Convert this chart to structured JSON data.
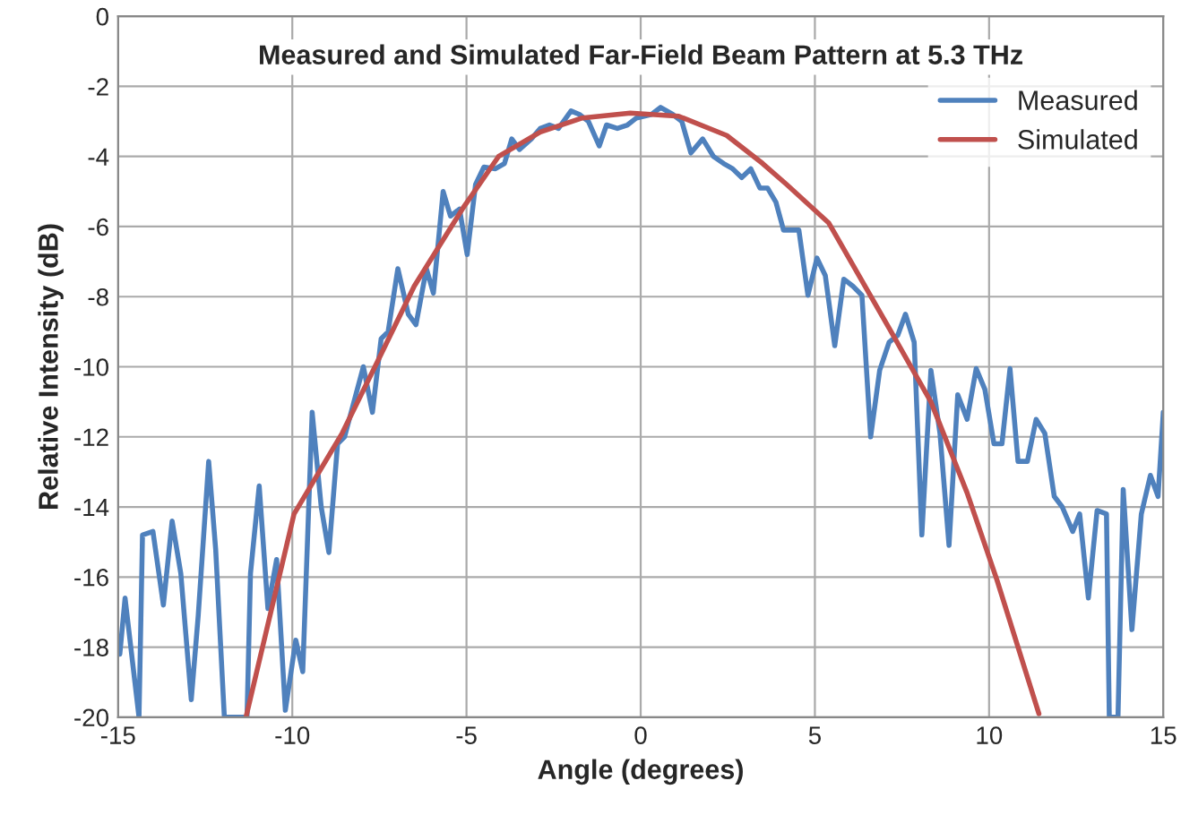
{
  "chart_data": {
    "type": "line",
    "title": "Measured and Simulated Far-Field Beam Pattern at 5.3 THz",
    "xlabel": "Angle (degrees)",
    "ylabel": "Relative Intensity (dB)",
    "xlim": [
      -15,
      15
    ],
    "xticks": [
      -15,
      -10,
      -5,
      0,
      5,
      10,
      15
    ],
    "ylim": [
      -20,
      0
    ],
    "yticks": [
      -20,
      -18,
      -16,
      -14,
      -12,
      -10,
      -8,
      -6,
      -4,
      -2,
      0
    ],
    "grid": true,
    "legend": "top right",
    "line_style": "solid",
    "series": [
      {
        "name": "Measured",
        "color": "#4f81bd",
        "x": [
          -14.95,
          -14.8,
          -14.4,
          -14.3,
          -14.0,
          -13.7,
          -13.45,
          -13.2,
          -12.9,
          -12.7,
          -12.4,
          -12.2,
          -11.95,
          -11.3,
          -11.2,
          -10.95,
          -10.7,
          -10.45,
          -10.2,
          -9.9,
          -9.7,
          -9.43,
          -9.17,
          -8.95,
          -8.7,
          -8.5,
          -7.96,
          -7.7,
          -7.45,
          -7.25,
          -6.97,
          -6.67,
          -6.45,
          -6.15,
          -5.95,
          -5.67,
          -5.46,
          -5.2,
          -4.98,
          -4.74,
          -4.5,
          -4.17,
          -3.91,
          -3.7,
          -3.48,
          -3.14,
          -2.88,
          -2.62,
          -2.36,
          -2.0,
          -1.76,
          -1.5,
          -1.19,
          -0.98,
          -0.67,
          -0.38,
          -0.12,
          0.31,
          0.57,
          0.92,
          1.18,
          1.44,
          1.78,
          2.09,
          2.38,
          2.64,
          2.9,
          3.16,
          3.42,
          3.64,
          3.88,
          4.1,
          4.54,
          4.8,
          5.06,
          5.3,
          5.57,
          5.83,
          6.09,
          6.35,
          6.6,
          6.86,
          7.13,
          7.38,
          7.6,
          7.85,
          8.07,
          8.33,
          8.59,
          8.85,
          9.1,
          9.37,
          9.63,
          9.88,
          10.14,
          10.37,
          10.6,
          10.83,
          11.1,
          11.35,
          11.6,
          11.87,
          12.1,
          12.4,
          12.6,
          12.85,
          13.1,
          13.37,
          13.45,
          13.7,
          13.85,
          14.1,
          14.37,
          14.63,
          14.85,
          15.0
        ],
        "values": [
          -18.2,
          -16.6,
          -20,
          -14.8,
          -14.7,
          -16.8,
          -14.4,
          -15.9,
          -19.5,
          -17.1,
          -12.7,
          -15.2,
          -20,
          -20,
          -15.9,
          -13.4,
          -16.9,
          -15.5,
          -19.8,
          -17.8,
          -18.7,
          -11.3,
          -14.0,
          -15.3,
          -12.2,
          -12.0,
          -10.0,
          -11.3,
          -9.2,
          -9.0,
          -7.2,
          -8.5,
          -8.8,
          -7.2,
          -7.9,
          -5.0,
          -5.7,
          -5.5,
          -6.8,
          -4.8,
          -4.3,
          -4.35,
          -4.2,
          -3.5,
          -3.8,
          -3.5,
          -3.2,
          -3.1,
          -3.2,
          -2.7,
          -2.8,
          -3.0,
          -3.7,
          -3.1,
          -3.2,
          -3.1,
          -2.9,
          -2.8,
          -2.6,
          -2.8,
          -3.0,
          -3.9,
          -3.5,
          -4.0,
          -4.2,
          -4.35,
          -4.6,
          -4.35,
          -4.9,
          -4.9,
          -5.3,
          -6.1,
          -6.1,
          -7.96,
          -6.9,
          -7.4,
          -9.4,
          -7.5,
          -7.7,
          -7.96,
          -12.0,
          -10.1,
          -9.3,
          -9.1,
          -8.5,
          -9.3,
          -14.8,
          -10.1,
          -11.9,
          -15.1,
          -10.8,
          -11.5,
          -10.05,
          -10.65,
          -12.2,
          -12.2,
          -10.05,
          -12.7,
          -12.7,
          -11.5,
          -11.9,
          -13.7,
          -14.0,
          -14.7,
          -14.2,
          -16.6,
          -14.1,
          -14.2,
          -20,
          -20,
          -13.5,
          -17.5,
          -14.2,
          -13.1,
          -13.7,
          -11.3
        ]
      },
      {
        "name": "Simulated",
        "color": "#c0504d",
        "x": [
          -11.33,
          -9.95,
          -8.57,
          -7.53,
          -6.5,
          -5.12,
          -4.08,
          -2.88,
          -1.67,
          -0.3,
          1.09,
          2.47,
          3.5,
          4.19,
          5.4,
          7.13,
          8.33,
          9.37,
          10.23,
          11.43
        ],
        "values": [
          -20,
          -14.2,
          -11.9,
          -9.8,
          -7.7,
          -5.5,
          -4.0,
          -3.3,
          -2.9,
          -2.76,
          -2.85,
          -3.4,
          -4.2,
          -4.8,
          -5.9,
          -8.9,
          -11.0,
          -13.6,
          -16.1,
          -19.9
        ]
      }
    ]
  }
}
